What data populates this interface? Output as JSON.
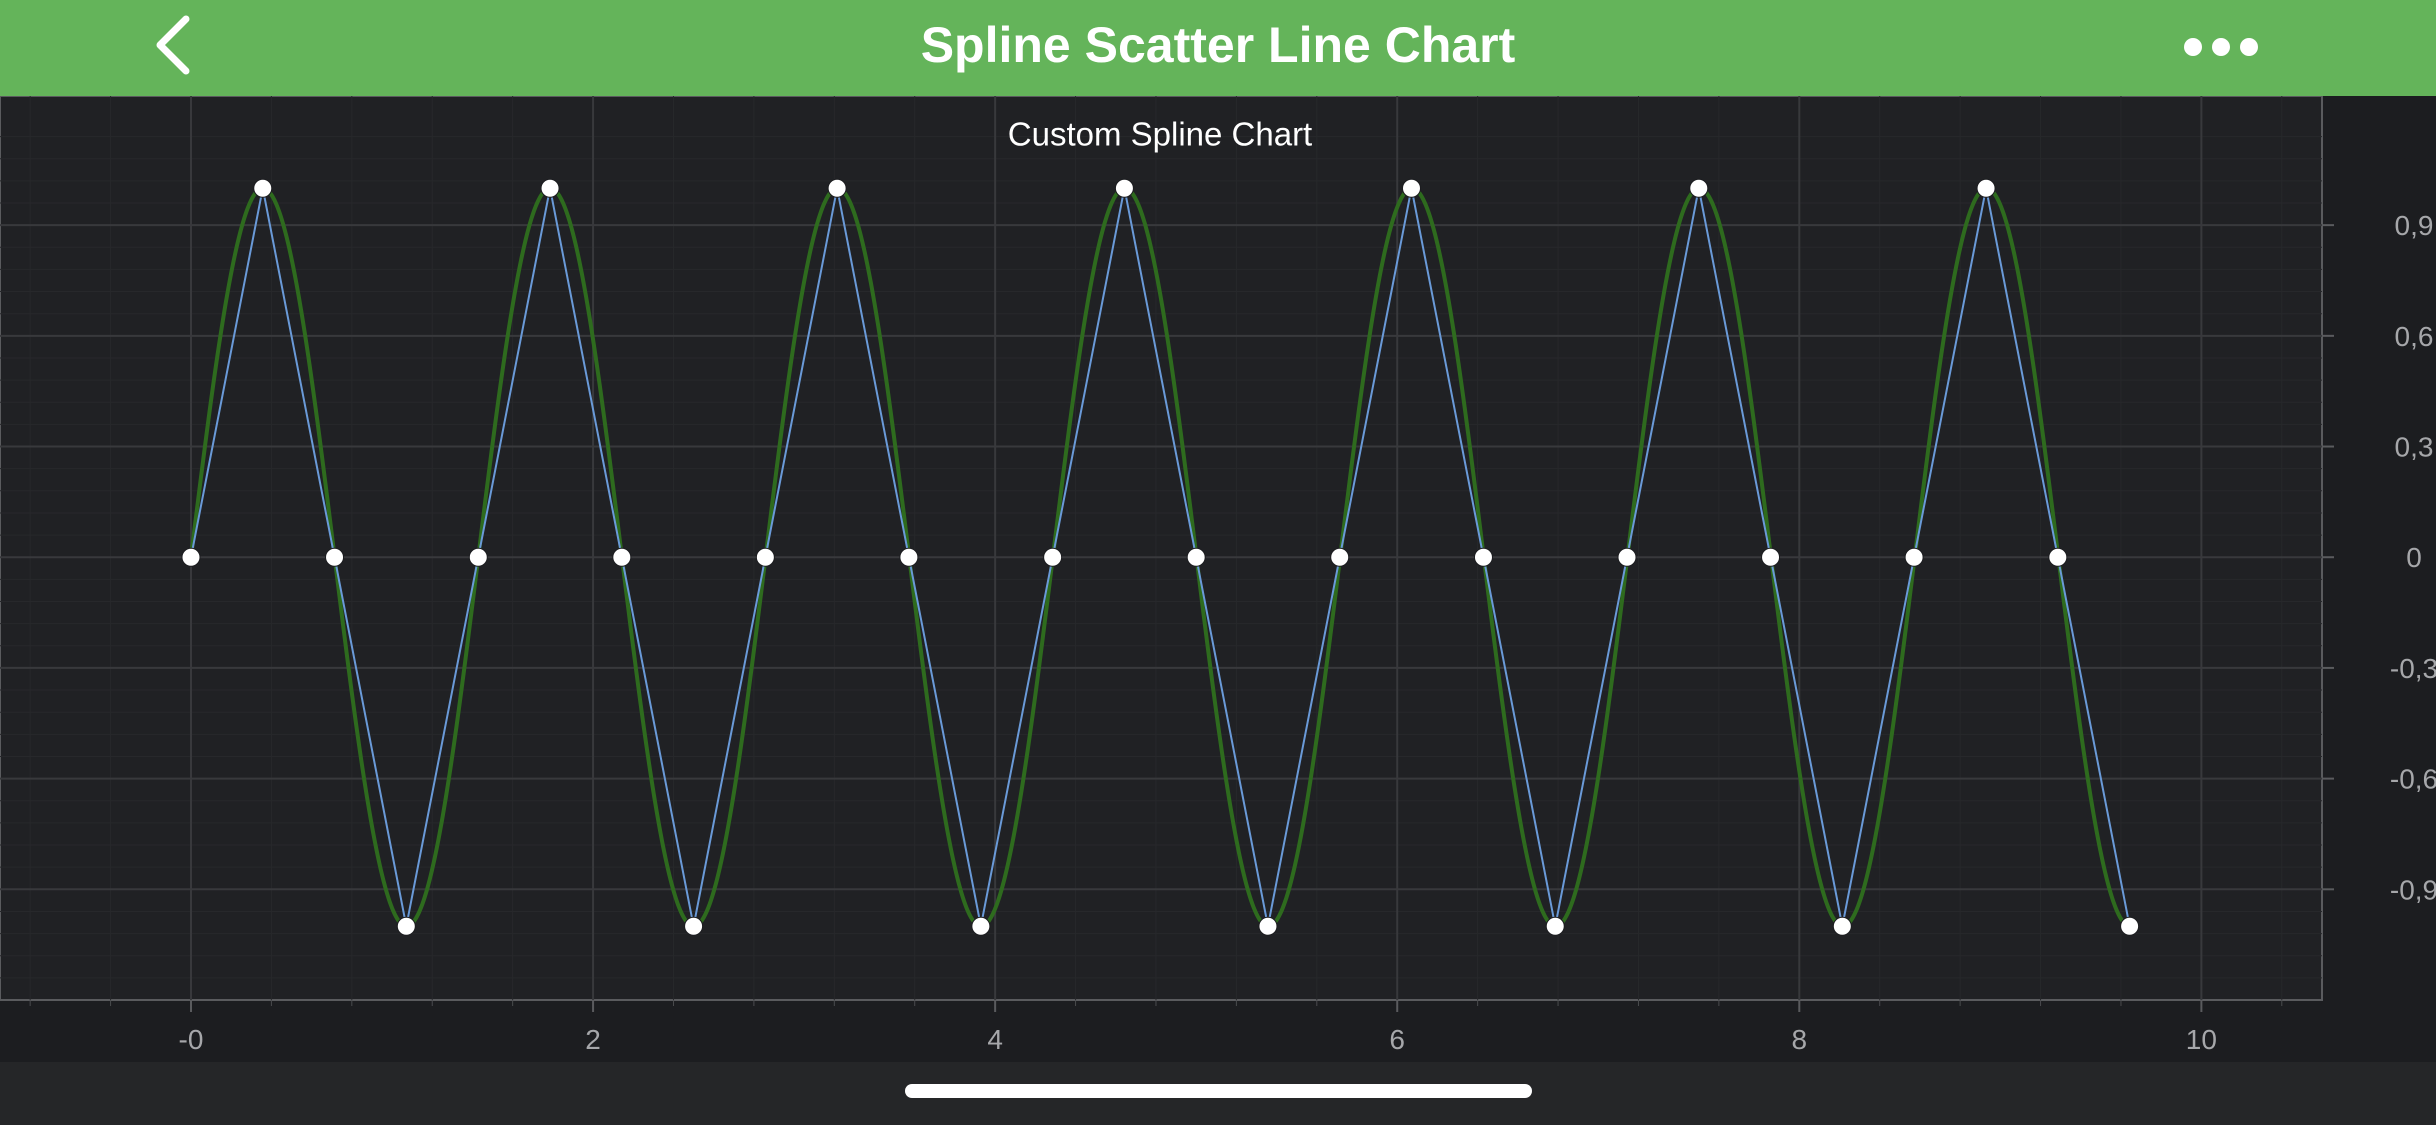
{
  "nav": {
    "title": "Spline Scatter Line Chart",
    "back_icon": "chevron-left-icon",
    "more_icon": "ellipsis-icon"
  },
  "colors": {
    "nav_bar": "#64b45a",
    "chart_background": "#1c1d20",
    "spline": "#2e6b1e",
    "line": "#6a9ad8",
    "points": "#ffffff"
  },
  "chart_data": {
    "type": "line",
    "title": "Custom Spline Chart",
    "xlabel": "",
    "ylabel": "",
    "xlim": [
      -0.95,
      10.6
    ],
    "ylim": [
      -1.2,
      1.25
    ],
    "x_ticks": [
      0,
      2,
      4,
      6,
      8,
      10
    ],
    "x_tick_labels": [
      "-0",
      "2",
      "4",
      "6",
      "8",
      "10"
    ],
    "y_ticks": [
      0.9,
      0.6,
      0.3,
      0,
      -0.3,
      -0.6,
      -0.9
    ],
    "y_tick_labels": [
      "0,9",
      "0,6",
      "0,3",
      "0",
      "-0,3",
      "-0,6",
      "-0,9"
    ],
    "y_axis_position": "right",
    "grid": true,
    "series": [
      {
        "kind": "spline",
        "x": [
          0,
          0.357,
          0.714,
          1.071,
          1.429,
          1.786,
          2.143,
          2.5,
          2.857,
          3.214,
          3.571,
          3.929,
          4.286,
          4.643,
          5.0,
          5.357,
          5.714,
          6.071,
          6.429,
          6.786,
          7.143,
          7.5,
          7.857,
          8.214,
          8.571,
          8.929,
          9.286,
          9.643
        ],
        "y": [
          0,
          1,
          0,
          -1,
          0,
          1,
          0,
          -1,
          0,
          1,
          0,
          -1,
          0,
          1,
          0,
          -1,
          0,
          1,
          0,
          -1,
          0,
          1,
          0,
          -1,
          0,
          1,
          0,
          -1
        ]
      },
      {
        "kind": "line-scatter",
        "x": [
          0,
          0.357,
          0.714,
          1.071,
          1.429,
          1.786,
          2.143,
          2.5,
          2.857,
          3.214,
          3.571,
          3.929,
          4.286,
          4.643,
          5.0,
          5.357,
          5.714,
          6.071,
          6.429,
          6.786,
          7.143,
          7.5,
          7.857,
          8.214,
          8.571,
          8.929,
          9.286,
          9.643
        ],
        "y": [
          0,
          1,
          0,
          -1,
          0,
          1,
          0,
          -1,
          0,
          1,
          0,
          -1,
          0,
          1,
          0,
          -1,
          0,
          1,
          0,
          -1,
          0,
          1,
          0,
          -1,
          0,
          1,
          0,
          -1
        ]
      }
    ]
  }
}
